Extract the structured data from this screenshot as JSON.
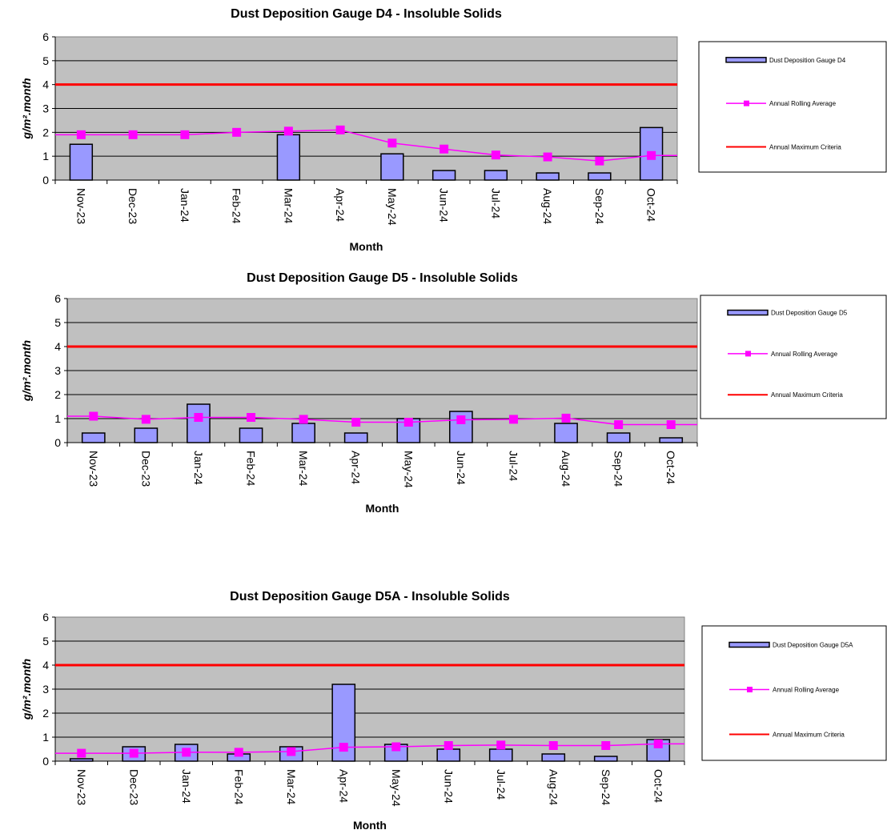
{
  "chart_data": [
    {
      "type": "bar",
      "title": "Dust Deposition Gauge D4 - Insoluble Solids",
      "xlabel": "Month",
      "ylabel": "g/m².month",
      "ylim": [
        0,
        6
      ],
      "yticks": [
        "0",
        "1",
        "2",
        "3",
        "4",
        "5",
        "6"
      ],
      "categories": [
        "Nov-23",
        "Dec-23",
        "Jan-24",
        "Feb-24",
        "Mar-24",
        "Apr-24",
        "May-24",
        "Jun-24",
        "Jul-24",
        "Aug-24",
        "Sep-24",
        "Oct-24"
      ],
      "series": [
        {
          "name": "Dust Deposition Gauge D4",
          "kind": "bar",
          "values": [
            1.5,
            null,
            null,
            null,
            1.9,
            null,
            1.1,
            0.4,
            0.4,
            0.3,
            0.3,
            2.2
          ]
        },
        {
          "name": "Annual Rolling Average",
          "kind": "line-marker",
          "values": [
            1.9,
            1.9,
            1.9,
            2.0,
            2.05,
            2.1,
            1.55,
            1.3,
            1.05,
            0.97,
            0.8,
            1.03
          ]
        },
        {
          "name": "Annual Maximum Criteria",
          "kind": "line",
          "values": [
            4,
            4,
            4,
            4,
            4,
            4,
            4,
            4,
            4,
            4,
            4,
            4
          ]
        }
      ],
      "grid": true,
      "legend_position": "right"
    },
    {
      "type": "bar",
      "title": "Dust Deposition Gauge D5 - Insoluble Solids",
      "xlabel": "Month",
      "ylabel": "g/m².month",
      "ylim": [
        0,
        6
      ],
      "yticks": [
        "0",
        "1",
        "2",
        "3",
        "4",
        "5",
        "6"
      ],
      "categories": [
        "Nov-23",
        "Dec-23",
        "Jan-24",
        "Feb-24",
        "Mar-24",
        "Apr-24",
        "May-24",
        "Jun-24",
        "Jul-24",
        "Aug-24",
        "Sep-24",
        "Oct-24"
      ],
      "series": [
        {
          "name": "Dust Deposition Gauge D5",
          "kind": "bar",
          "values": [
            0.4,
            0.6,
            1.6,
            0.6,
            0.8,
            0.4,
            1.0,
            1.3,
            null,
            0.8,
            0.4,
            0.2
          ]
        },
        {
          "name": "Annual Rolling Average",
          "kind": "line-marker",
          "values": [
            1.1,
            0.97,
            1.05,
            1.05,
            0.97,
            0.85,
            0.85,
            0.95,
            0.97,
            1.02,
            0.75,
            0.75
          ]
        },
        {
          "name": "Annual Maximum Criteria",
          "kind": "line",
          "values": [
            4,
            4,
            4,
            4,
            4,
            4,
            4,
            4,
            4,
            4,
            4,
            4
          ]
        }
      ],
      "grid": true,
      "legend_position": "right"
    },
    {
      "type": "bar",
      "title": "Dust Deposition Gauge D5A - Insoluble Solids",
      "xlabel": "Month",
      "ylabel": "g/m².month",
      "ylim": [
        0,
        6
      ],
      "yticks": [
        "0",
        "1",
        "2",
        "3",
        "4",
        "5",
        "6"
      ],
      "categories": [
        "Nov-23",
        "Dec-23",
        "Jan-24",
        "Feb-24",
        "Mar-24",
        "Apr-24",
        "May-24",
        "Jun-24",
        "Jul-24",
        "Aug-24",
        "Sep-24",
        "Oct-24"
      ],
      "series": [
        {
          "name": "Dust Deposition Gauge D5A",
          "kind": "bar",
          "values": [
            0.1,
            0.6,
            0.7,
            0.3,
            0.6,
            3.2,
            0.7,
            0.5,
            0.5,
            0.3,
            0.2,
            0.9
          ]
        },
        {
          "name": "Annual Rolling Average",
          "kind": "line-marker",
          "values": [
            0.33,
            0.33,
            0.37,
            0.37,
            0.4,
            0.58,
            0.6,
            0.65,
            0.67,
            0.65,
            0.65,
            0.72
          ]
        },
        {
          "name": "Annual Maximum Criteria",
          "kind": "line",
          "values": [
            4,
            4,
            4,
            4,
            4,
            4,
            4,
            4,
            4,
            4,
            4,
            4
          ]
        }
      ],
      "grid": true,
      "legend_position": "right"
    }
  ],
  "colors": {
    "plot_bg": "#c0c0c0",
    "bar_fill": "#9999ff",
    "bar_edge": "#000000",
    "average_line": "#ff00ff",
    "criteria_line": "#ff0000",
    "grid": "#000000",
    "text": "#000000"
  }
}
